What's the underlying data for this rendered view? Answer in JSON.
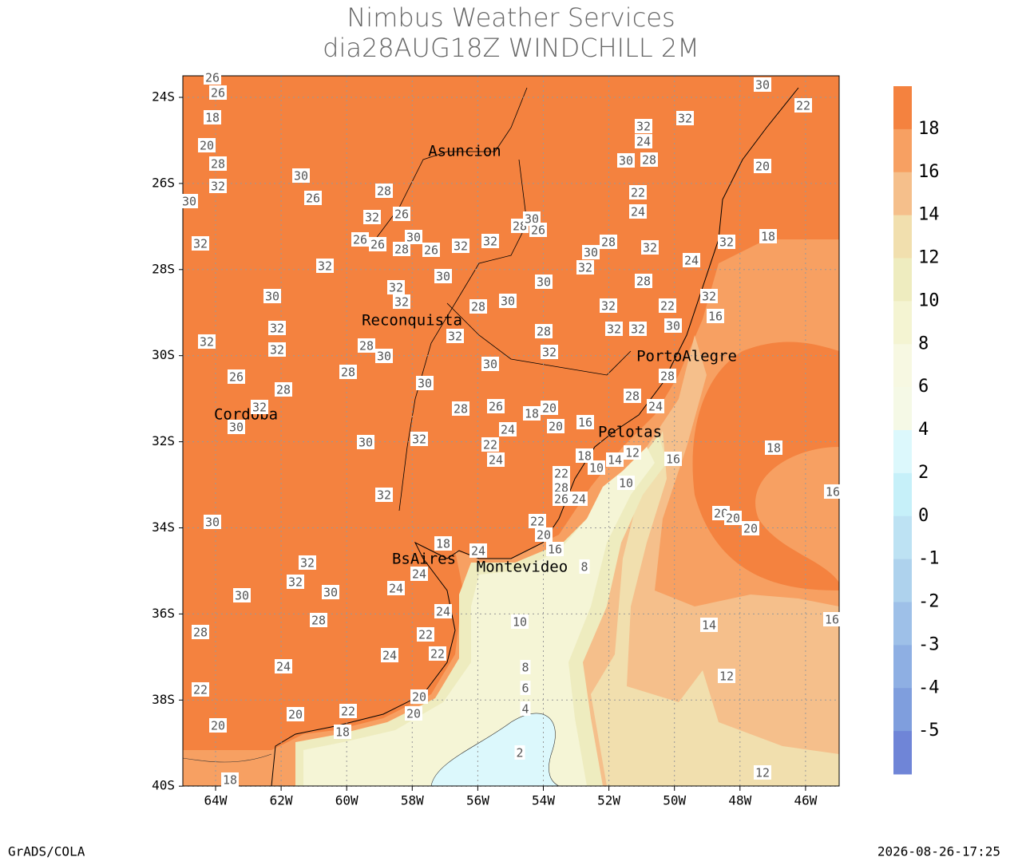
{
  "header": {
    "title": "Nimbus Weather Services",
    "subtitle": "dia28AUG18Z WINDCHILL 2M"
  },
  "map": {
    "lat_ticks": [
      "24S",
      "26S",
      "28S",
      "30S",
      "32S",
      "34S",
      "36S",
      "38S",
      "40S"
    ],
    "lon_ticks": [
      "64W",
      "62W",
      "60W",
      "58W",
      "56W",
      "54W",
      "52W",
      "50W",
      "48W",
      "46W"
    ],
    "cities": [
      "Asuncion",
      "Reconquista",
      "PortoAlegre",
      "Cordoba",
      "Pelotas",
      "BsAires",
      "Montevideo"
    ],
    "contour_labels": [
      26,
      26,
      18,
      20,
      28,
      32,
      30,
      30,
      26,
      28,
      32,
      26,
      26,
      26,
      28,
      30,
      26,
      32,
      32,
      28,
      30,
      26,
      32,
      32,
      30,
      30,
      32,
      32,
      28,
      30,
      30,
      32,
      32,
      32,
      28,
      30,
      28,
      32,
      28,
      32,
      30,
      30,
      26,
      28,
      32,
      30,
      28,
      26,
      24,
      18,
      20,
      20,
      16,
      30,
      32,
      22,
      24,
      32,
      30,
      32,
      32,
      30,
      30,
      28,
      28,
      24,
      22,
      20,
      20,
      22,
      18,
      18,
      24,
      24,
      24,
      22,
      22,
      24,
      20,
      20,
      18,
      24,
      22,
      20,
      16,
      22,
      28,
      26,
      24,
      18,
      10,
      14,
      12,
      10,
      16,
      8,
      10,
      8,
      6,
      4,
      2,
      14,
      12,
      12,
      16,
      16,
      18,
      20,
      20,
      20,
      16,
      32,
      18,
      20,
      22,
      30,
      32,
      32,
      24,
      30,
      28,
      22,
      24,
      28,
      30,
      32,
      32,
      28,
      24,
      32,
      32,
      22,
      30,
      32,
      32,
      28,
      28,
      24
    ]
  },
  "colorbar": {
    "labels": [
      18,
      16,
      14,
      12,
      10,
      8,
      6,
      4,
      2,
      0,
      -1,
      -2,
      -3,
      -4,
      -5
    ],
    "colors": [
      "#f4823f",
      "#f7a062",
      "#f5bf8b",
      "#f1dfae",
      "#eeecbf",
      "#f4f4d2",
      "#f7f8e2",
      "#f5f9e6",
      "#dcf8fc",
      "#c6f0f9",
      "#bde2f3",
      "#aed2ed",
      "#9ec0e8",
      "#8eafe3",
      "#7f9edd",
      "#6f85d7"
    ]
  },
  "footer": {
    "left": "GrADS/COLA",
    "right": "2026-08-26-17:25"
  }
}
